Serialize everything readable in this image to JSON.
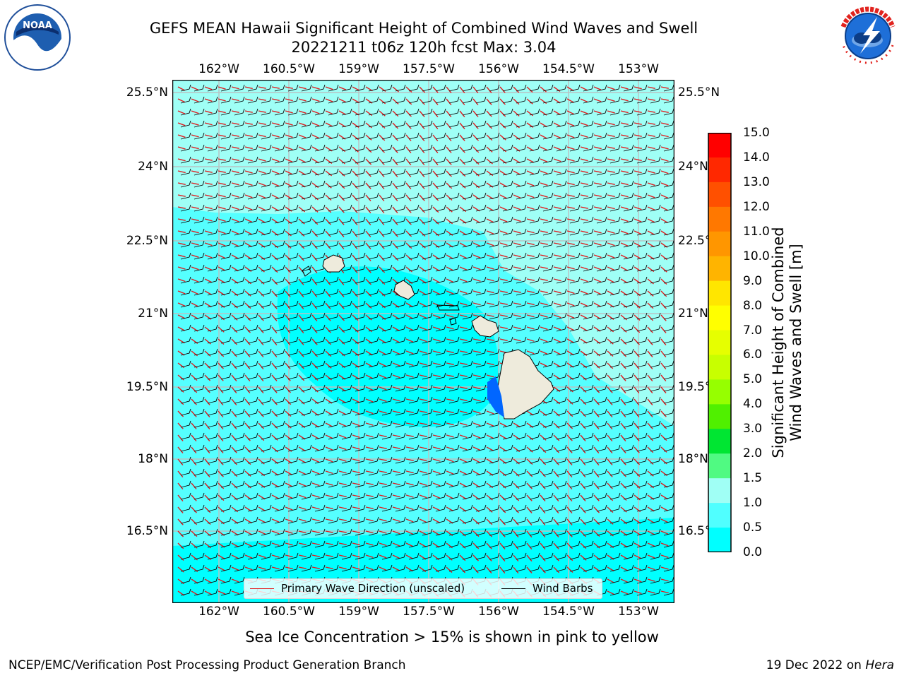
{
  "header": {
    "title_line1": "GEFS MEAN Hawaii Significant Height of Combined Wind Waves and Swell",
    "title_line2": "20221211 t06z 120h fcst   Max: 3.04"
  },
  "logos": {
    "left": {
      "name": "NOAA",
      "ring_text": "NATIONAL OCEANIC AND ATMOSPHERIC ADMINISTRATION",
      "bottom_text": "U.S. DEPARTMENT OF COMMERCE"
    },
    "right": {
      "name": "NATIONAL WEATHER SERVICE"
    }
  },
  "map": {
    "lon_ticks": [
      "162°W",
      "160.5°W",
      "159°W",
      "157.5°W",
      "156°W",
      "154.5°W",
      "153°W"
    ],
    "lat_ticks": [
      "25.5°N",
      "24°N",
      "22.5°N",
      "21°N",
      "19.5°N",
      "18°N",
      "16.5°N"
    ],
    "field_colors": {
      "ocean_base": "#00ffff",
      "ocean_light": "#55ffff",
      "ocean_lighter": "#9ffff6",
      "land": "#eeebdc",
      "shallow": "#0066ff"
    },
    "legend": {
      "wave_label": "Primary Wave Direction (unscaled)",
      "wave_color": "#e41a1c",
      "barb_label": "Wind Barbs",
      "barb_color": "#000000"
    }
  },
  "colorbar": {
    "ticks": [
      "15.0",
      "14.0",
      "13.0",
      "12.0",
      "11.0",
      "10.0",
      "9.0",
      "8.0",
      "7.0",
      "6.0",
      "5.0",
      "4.0",
      "3.0",
      "2.0",
      "1.5",
      "1.0",
      "0.5",
      "0.0"
    ],
    "colors": [
      "#ff0000",
      "#ff2800",
      "#ff5000",
      "#ff7800",
      "#ff9600",
      "#ffb400",
      "#ffe600",
      "#ffff00",
      "#e6ff00",
      "#c8ff00",
      "#96ff00",
      "#50f000",
      "#00e632",
      "#50fa82",
      "#a0fff5",
      "#50ffff",
      "#00ffff",
      "#0050ff",
      "#0000ff"
    ],
    "label_line1": "Significant Height of Combined",
    "label_line2": "Wind Waves and Swell [m]"
  },
  "note": "Sea Ice Concentration > 15% is shown in pink to yellow",
  "footer": {
    "left": "NCEP/EMC/Verification Post Processing Product Generation Branch",
    "right_prefix": "19 Dec 2022 on ",
    "right_host": "Hera"
  }
}
